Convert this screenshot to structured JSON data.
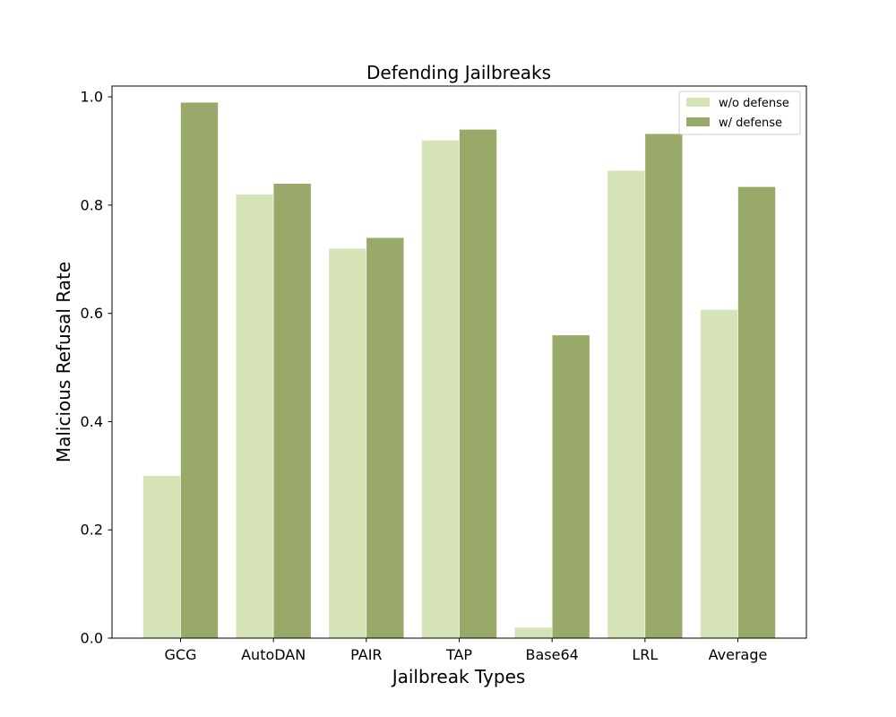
{
  "chart_data": {
    "type": "bar",
    "title": "Defending Jailbreaks",
    "xlabel": "Jailbreak Types",
    "ylabel": "Malicious Refusal Rate",
    "categories": [
      "GCG",
      "AutoDAN",
      "PAIR",
      "TAP",
      "Base64",
      "LRL",
      "Average"
    ],
    "series": [
      {
        "name": "w/o defense",
        "color": "#d6e3b7",
        "values": [
          0.3,
          0.82,
          0.72,
          0.92,
          0.02,
          0.864,
          0.607
        ]
      },
      {
        "name": "w/ defense",
        "color": "#98a96a",
        "values": [
          0.99,
          0.84,
          0.74,
          0.94,
          0.56,
          0.932,
          0.834
        ]
      }
    ],
    "ylim": [
      0,
      1.02
    ],
    "yticks": [
      "0.0",
      "0.2",
      "0.4",
      "0.6",
      "0.8",
      "1.0"
    ],
    "grid": false,
    "legend_position": "top-right"
  }
}
